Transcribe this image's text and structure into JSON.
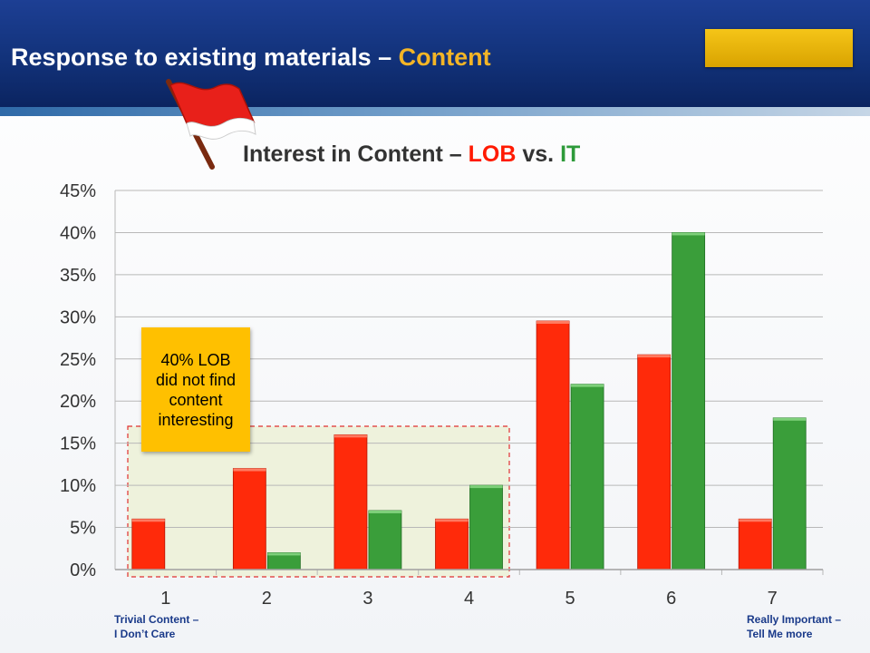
{
  "slide": {
    "title_prefix": "Response to existing materials – ",
    "title_accent": "Content"
  },
  "chart_data": {
    "type": "bar",
    "title": "Interest in Content – LOB vs. IT",
    "title_parts": {
      "prefix": "Interest in Content – ",
      "lob": "LOB",
      "vs": " vs. ",
      "it": "IT"
    },
    "categories": [
      "1",
      "2",
      "3",
      "4",
      "5",
      "6",
      "7"
    ],
    "series": [
      {
        "name": "LOB",
        "color": "#ff2a0a",
        "values": [
          6,
          12,
          16,
          6,
          29.5,
          25.5,
          6
        ]
      },
      {
        "name": "IT",
        "color": "#3a9e3a",
        "values": [
          0,
          2,
          7,
          10,
          22,
          40,
          18
        ]
      }
    ],
    "ylim": [
      0,
      45
    ],
    "yticks": [
      "0%",
      "5%",
      "10%",
      "15%",
      "20%",
      "25%",
      "30%",
      "35%",
      "40%",
      "45%"
    ],
    "grid": true,
    "xlabel": "",
    "ylabel": "",
    "annotations": {
      "callout": "40% LOB did not find content interesting",
      "x_low_label": "Trivial Content –\nI Don’t Care",
      "x_high_label": "Really Important –\nTell Me more"
    }
  },
  "icons": {
    "flag": "red-flag-icon"
  }
}
